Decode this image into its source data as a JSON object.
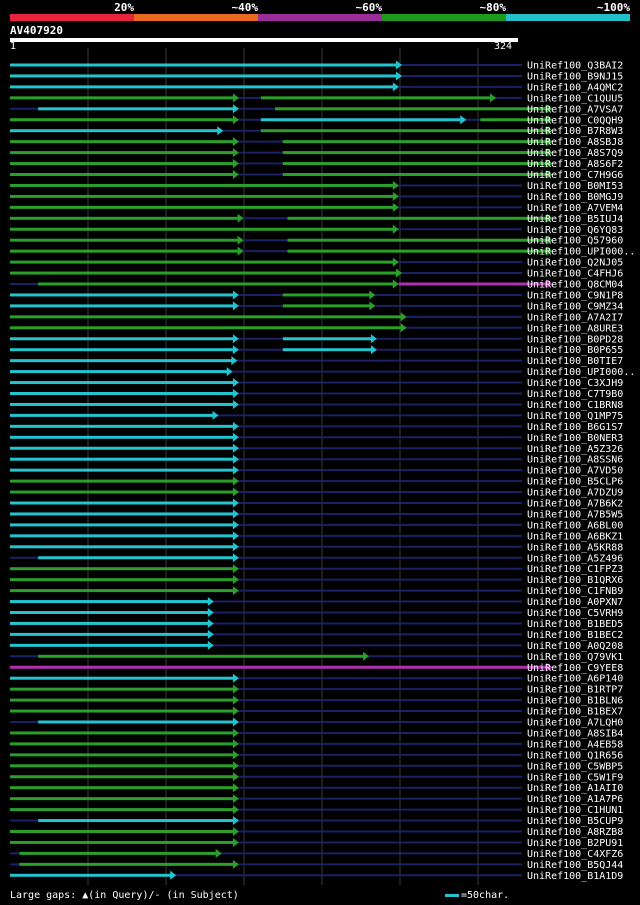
{
  "scale": {
    "labels": [
      "20%",
      "~40%",
      "~60%",
      "~80%",
      "~100%"
    ],
    "colors": [
      "#e8233c",
      "#e86a1e",
      "#9a2d9a",
      "#1e9a1e",
      "#22c0c8"
    ]
  },
  "query": {
    "name": "AV407920",
    "start": "1",
    "end": "324",
    "length": 324
  },
  "colors": {
    "cyan": "#22c4d0",
    "green": "#2aa02a",
    "magenta": "#b030b0",
    "track": "#1c2066",
    "grid": "#3a3a3a"
  },
  "footer": {
    "gaps_text": "Large gaps: ▲(in Query)/- (in Subject)",
    "scale_text": "=50char."
  },
  "hits": [
    {
      "name": "UniRef100_Q3BAI2",
      "segments": [
        {
          "s": 1,
          "e": 251,
          "c": "cyan"
        }
      ]
    },
    {
      "name": "UniRef100_B9NJ15",
      "segments": [
        {
          "s": 1,
          "e": 251,
          "c": "cyan"
        }
      ]
    },
    {
      "name": "UniRef100_A4QMC2",
      "segments": [
        {
          "s": 1,
          "e": 249,
          "c": "cyan"
        }
      ]
    },
    {
      "name": "UniRef100_C1QUU5",
      "segments": [
        {
          "s": 1,
          "e": 147,
          "c": "green"
        },
        {
          "s": 161,
          "e": 311,
          "c": "green"
        }
      ]
    },
    {
      "name": "UniRef100_A7VSA7",
      "segments": [
        {
          "s": 19,
          "e": 147,
          "c": "cyan"
        },
        {
          "s": 170,
          "e": 347,
          "c": "green"
        }
      ]
    },
    {
      "name": "UniRef100_C0QQH9",
      "segments": [
        {
          "s": 1,
          "e": 147,
          "c": "green"
        },
        {
          "s": 161,
          "e": 292,
          "c": "cyan"
        },
        {
          "s": 301,
          "e": 347,
          "c": "green"
        }
      ]
    },
    {
      "name": "UniRef100_B7R8W3",
      "segments": [
        {
          "s": 1,
          "e": 137,
          "c": "cyan"
        },
        {
          "s": 161,
          "e": 347,
          "c": "green"
        }
      ]
    },
    {
      "name": "UniRef100_A8SBJ8",
      "segments": [
        {
          "s": 1,
          "e": 147,
          "c": "green"
        },
        {
          "s": 175,
          "e": 347,
          "c": "green"
        }
      ]
    },
    {
      "name": "UniRef100_A8S7Q9",
      "segments": [
        {
          "s": 1,
          "e": 147,
          "c": "green"
        },
        {
          "s": 175,
          "e": 347,
          "c": "green"
        }
      ]
    },
    {
      "name": "UniRef100_A8S6F2",
      "segments": [
        {
          "s": 1,
          "e": 147,
          "c": "green"
        },
        {
          "s": 175,
          "e": 347,
          "c": "green"
        }
      ]
    },
    {
      "name": "UniRef100_C7H9G6",
      "segments": [
        {
          "s": 1,
          "e": 147,
          "c": "green"
        },
        {
          "s": 175,
          "e": 347,
          "c": "green"
        }
      ]
    },
    {
      "name": "UniRef100_B0MI53",
      "segments": [
        {
          "s": 1,
          "e": 249,
          "c": "green"
        }
      ]
    },
    {
      "name": "UniRef100_B0MGJ9",
      "segments": [
        {
          "s": 1,
          "e": 249,
          "c": "green"
        }
      ]
    },
    {
      "name": "UniRef100_A7VEM4",
      "segments": [
        {
          "s": 1,
          "e": 249,
          "c": "green"
        }
      ]
    },
    {
      "name": "UniRef100_B5IUJ4",
      "segments": [
        {
          "s": 1,
          "e": 150,
          "c": "green"
        },
        {
          "s": 178,
          "e": 347,
          "c": "green"
        }
      ]
    },
    {
      "name": "UniRef100_Q6YQ83",
      "segments": [
        {
          "s": 1,
          "e": 249,
          "c": "green"
        }
      ]
    },
    {
      "name": "UniRef100_Q57960",
      "segments": [
        {
          "s": 1,
          "e": 150,
          "c": "green"
        },
        {
          "s": 178,
          "e": 347,
          "c": "green"
        }
      ]
    },
    {
      "name": "UniRef100_UPI000..",
      "segments": [
        {
          "s": 1,
          "e": 150,
          "c": "green"
        },
        {
          "s": 178,
          "e": 347,
          "c": "green"
        }
      ]
    },
    {
      "name": "UniRef100_Q2NJ05",
      "segments": [
        {
          "s": 1,
          "e": 249,
          "c": "green"
        }
      ]
    },
    {
      "name": "UniRef100_C4FHJ6",
      "segments": [
        {
          "s": 1,
          "e": 251,
          "c": "green"
        }
      ]
    },
    {
      "name": "UniRef100_Q8CM04",
      "segments": [
        {
          "s": 19,
          "e": 249,
          "c": "green"
        },
        {
          "s": 249,
          "e": 347,
          "c": "magenta"
        }
      ]
    },
    {
      "name": "UniRef100_C9N1P8",
      "segments": [
        {
          "s": 1,
          "e": 147,
          "c": "cyan"
        },
        {
          "s": 175,
          "e": 234,
          "c": "green"
        }
      ]
    },
    {
      "name": "UniRef100_C9MZ34",
      "segments": [
        {
          "s": 1,
          "e": 147,
          "c": "cyan"
        },
        {
          "s": 175,
          "e": 234,
          "c": "green"
        }
      ]
    },
    {
      "name": "UniRef100_A7A2I7",
      "segments": [
        {
          "s": 1,
          "e": 254,
          "c": "green"
        }
      ]
    },
    {
      "name": "UniRef100_A8URE3",
      "segments": [
        {
          "s": 1,
          "e": 254,
          "c": "green"
        }
      ]
    },
    {
      "name": "UniRef100_B0PD28",
      "segments": [
        {
          "s": 1,
          "e": 147,
          "c": "cyan"
        },
        {
          "s": 175,
          "e": 235,
          "c": "cyan"
        }
      ]
    },
    {
      "name": "UniRef100_B0P655",
      "segments": [
        {
          "s": 1,
          "e": 147,
          "c": "cyan"
        },
        {
          "s": 175,
          "e": 235,
          "c": "cyan"
        }
      ]
    },
    {
      "name": "UniRef100_B0TIE7",
      "segments": [
        {
          "s": 1,
          "e": 146,
          "c": "cyan"
        }
      ]
    },
    {
      "name": "UniRef100_UPI000..",
      "segments": [
        {
          "s": 1,
          "e": 143,
          "c": "cyan"
        }
      ]
    },
    {
      "name": "UniRef100_C3XJH9",
      "segments": [
        {
          "s": 1,
          "e": 147,
          "c": "cyan"
        }
      ]
    },
    {
      "name": "UniRef100_C7T9B0",
      "segments": [
        {
          "s": 1,
          "e": 147,
          "c": "cyan"
        }
      ]
    },
    {
      "name": "UniRef100_C1BRN8",
      "segments": [
        {
          "s": 1,
          "e": 147,
          "c": "cyan"
        }
      ]
    },
    {
      "name": "UniRef100_Q1MP75",
      "segments": [
        {
          "s": 1,
          "e": 134,
          "c": "cyan"
        }
      ]
    },
    {
      "name": "UniRef100_B6G1S7",
      "segments": [
        {
          "s": 1,
          "e": 147,
          "c": "cyan"
        }
      ]
    },
    {
      "name": "UniRef100_B0NER3",
      "segments": [
        {
          "s": 1,
          "e": 147,
          "c": "cyan"
        }
      ]
    },
    {
      "name": "UniRef100_A5Z326",
      "segments": [
        {
          "s": 1,
          "e": 147,
          "c": "cyan"
        }
      ]
    },
    {
      "name": "UniRef100_A8SSN6",
      "segments": [
        {
          "s": 1,
          "e": 147,
          "c": "cyan"
        }
      ]
    },
    {
      "name": "UniRef100_A7VD50",
      "segments": [
        {
          "s": 1,
          "e": 147,
          "c": "cyan"
        }
      ]
    },
    {
      "name": "UniRef100_B5CLP6",
      "segments": [
        {
          "s": 1,
          "e": 147,
          "c": "green"
        }
      ]
    },
    {
      "name": "UniRef100_A7DZU9",
      "segments": [
        {
          "s": 1,
          "e": 147,
          "c": "green"
        }
      ]
    },
    {
      "name": "UniRef100_A7B6K2",
      "segments": [
        {
          "s": 1,
          "e": 147,
          "c": "cyan"
        }
      ]
    },
    {
      "name": "UniRef100_A7B5W5",
      "segments": [
        {
          "s": 1,
          "e": 147,
          "c": "cyan"
        }
      ]
    },
    {
      "name": "UniRef100_A6BL00",
      "segments": [
        {
          "s": 1,
          "e": 147,
          "c": "cyan"
        }
      ]
    },
    {
      "name": "UniRef100_A6BKZ1",
      "segments": [
        {
          "s": 1,
          "e": 147,
          "c": "cyan"
        }
      ]
    },
    {
      "name": "UniRef100_A5KR88",
      "segments": [
        {
          "s": 1,
          "e": 147,
          "c": "cyan"
        }
      ]
    },
    {
      "name": "UniRef100_A5Z496",
      "segments": [
        {
          "s": 19,
          "e": 147,
          "c": "cyan"
        }
      ]
    },
    {
      "name": "UniRef100_C1FPZ3",
      "segments": [
        {
          "s": 1,
          "e": 147,
          "c": "green"
        }
      ]
    },
    {
      "name": "UniRef100_B1QRX6",
      "segments": [
        {
          "s": 1,
          "e": 147,
          "c": "green"
        }
      ]
    },
    {
      "name": "UniRef100_C1FNB9",
      "segments": [
        {
          "s": 1,
          "e": 147,
          "c": "green"
        }
      ]
    },
    {
      "name": "UniRef100_A0PXN7",
      "segments": [
        {
          "s": 1,
          "e": 131,
          "c": "cyan"
        }
      ]
    },
    {
      "name": "UniRef100_C5VRH9",
      "segments": [
        {
          "s": 1,
          "e": 131,
          "c": "cyan"
        }
      ]
    },
    {
      "name": "UniRef100_B1BED5",
      "segments": [
        {
          "s": 1,
          "e": 131,
          "c": "cyan"
        }
      ]
    },
    {
      "name": "UniRef100_B1BEC2",
      "segments": [
        {
          "s": 1,
          "e": 131,
          "c": "cyan"
        }
      ]
    },
    {
      "name": "UniRef100_A0Q208",
      "segments": [
        {
          "s": 1,
          "e": 131,
          "c": "cyan"
        }
      ]
    },
    {
      "name": "UniRef100_Q79VK1",
      "segments": [
        {
          "s": 19,
          "e": 230,
          "c": "green"
        }
      ]
    },
    {
      "name": "UniRef100_C9YEE8",
      "segments": [
        {
          "s": 1,
          "e": 347,
          "c": "magenta"
        }
      ]
    },
    {
      "name": "UniRef100_A6P140",
      "segments": [
        {
          "s": 1,
          "e": 147,
          "c": "cyan"
        }
      ]
    },
    {
      "name": "UniRef100_B1RTP7",
      "segments": [
        {
          "s": 1,
          "e": 147,
          "c": "green"
        }
      ]
    },
    {
      "name": "UniRef100_B1BLN6",
      "segments": [
        {
          "s": 1,
          "e": 147,
          "c": "green"
        }
      ]
    },
    {
      "name": "UniRef100_B1BEX7",
      "segments": [
        {
          "s": 1,
          "e": 147,
          "c": "green"
        }
      ]
    },
    {
      "name": "UniRef100_A7LQH0",
      "segments": [
        {
          "s": 19,
          "e": 147,
          "c": "cyan"
        }
      ]
    },
    {
      "name": "UniRef100_A8SIB4",
      "segments": [
        {
          "s": 1,
          "e": 147,
          "c": "green"
        }
      ]
    },
    {
      "name": "UniRef100_A4EB58",
      "segments": [
        {
          "s": 1,
          "e": 147,
          "c": "green"
        }
      ]
    },
    {
      "name": "UniRef100_Q1R656",
      "segments": [
        {
          "s": 1,
          "e": 147,
          "c": "green"
        }
      ]
    },
    {
      "name": "UniRef100_C5WBP5",
      "segments": [
        {
          "s": 1,
          "e": 147,
          "c": "green"
        }
      ]
    },
    {
      "name": "UniRef100_C5W1F9",
      "segments": [
        {
          "s": 1,
          "e": 147,
          "c": "green"
        }
      ]
    },
    {
      "name": "UniRef100_A1AII0",
      "segments": [
        {
          "s": 1,
          "e": 147,
          "c": "green"
        }
      ]
    },
    {
      "name": "UniRef100_A1A7P6",
      "segments": [
        {
          "s": 1,
          "e": 147,
          "c": "green"
        }
      ]
    },
    {
      "name": "UniRef100_C1HUN1",
      "segments": [
        {
          "s": 1,
          "e": 147,
          "c": "green"
        }
      ]
    },
    {
      "name": "UniRef100_B5CUP9",
      "segments": [
        {
          "s": 19,
          "e": 147,
          "c": "cyan"
        }
      ]
    },
    {
      "name": "UniRef100_A8RZB8",
      "segments": [
        {
          "s": 1,
          "e": 147,
          "c": "green"
        }
      ]
    },
    {
      "name": "UniRef100_B2PU91",
      "segments": [
        {
          "s": 1,
          "e": 147,
          "c": "green"
        }
      ]
    },
    {
      "name": "UniRef100_C4XFZ6",
      "segments": [
        {
          "s": 7,
          "e": 136,
          "c": "green"
        }
      ]
    },
    {
      "name": "UniRef100_B5QJ44",
      "segments": [
        {
          "s": 7,
          "e": 147,
          "c": "green"
        }
      ]
    },
    {
      "name": "UniRef100_B1A1D9",
      "segments": [
        {
          "s": 1,
          "e": 107,
          "c": "cyan"
        }
      ]
    }
  ]
}
